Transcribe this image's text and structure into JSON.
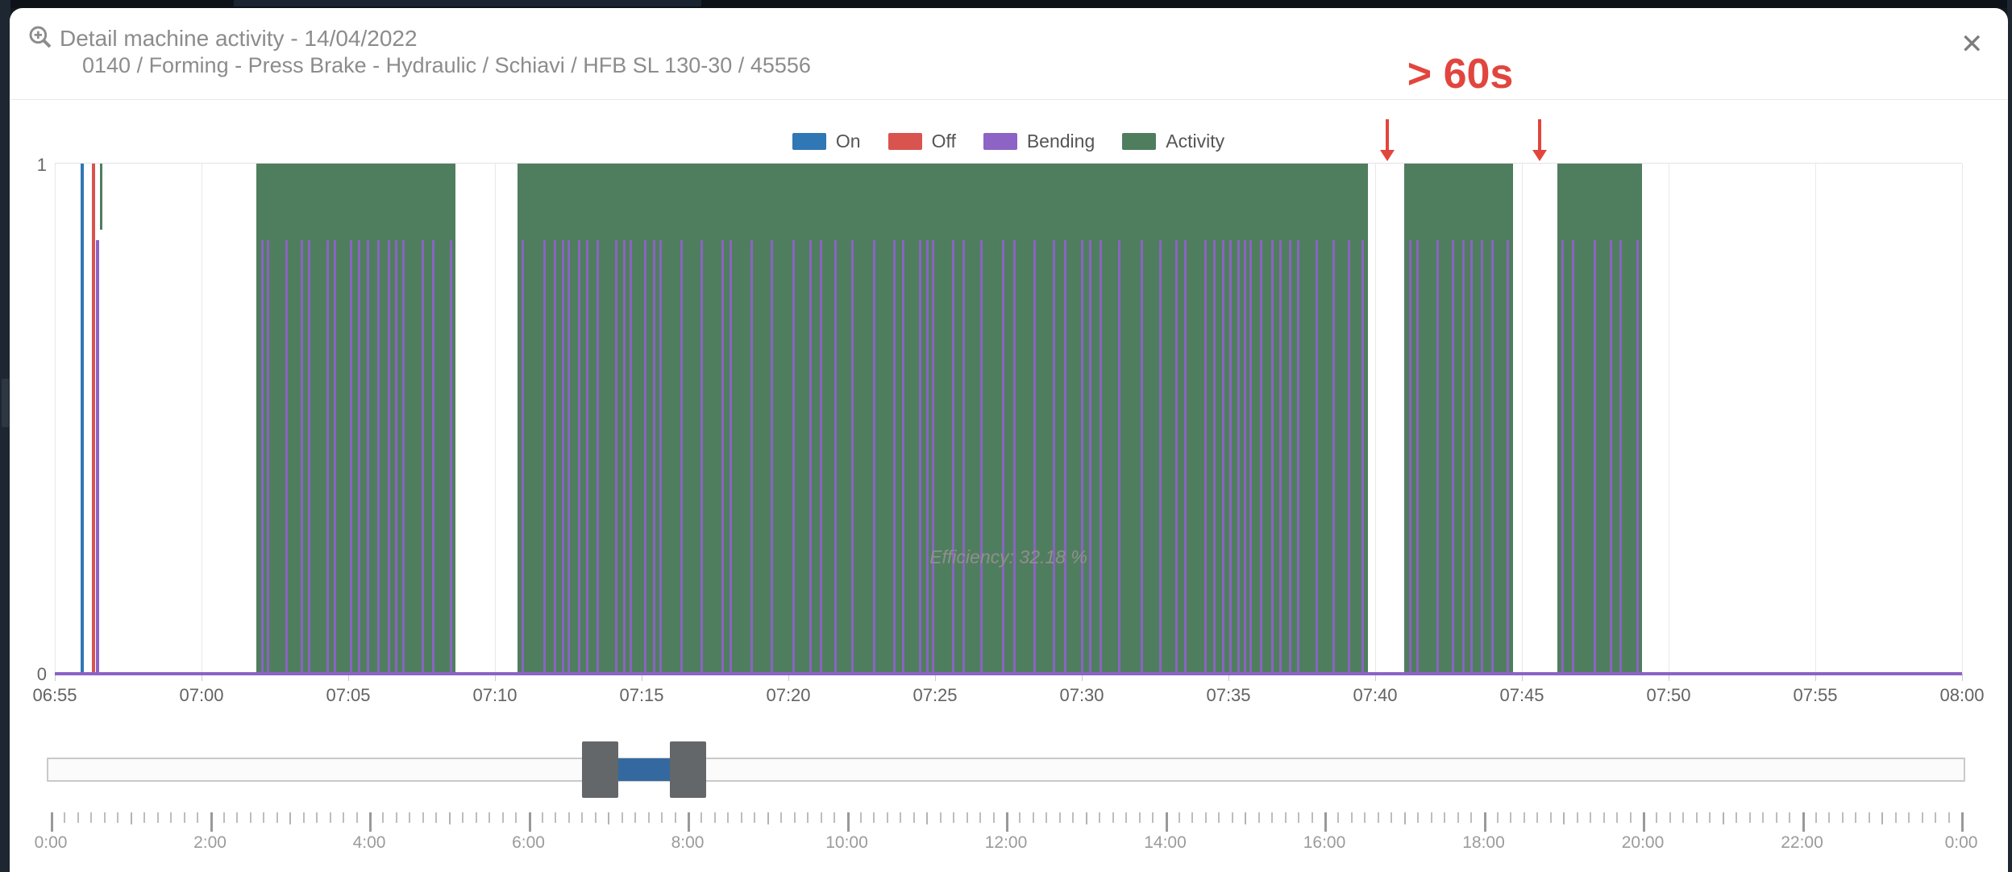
{
  "page": {
    "background_color": "#12181f"
  },
  "modal": {
    "title": "Detail machine activity - 14/04/2022",
    "subtitle": "0140 / Forming - Press Brake - Hydraulic / Schiavi / HFB SL 130-30 / 45556",
    "close_glyph": "✕"
  },
  "legend": {
    "items": [
      {
        "label": "On",
        "color": "#3077b5"
      },
      {
        "label": "Off",
        "color": "#d9534f"
      },
      {
        "label": "Bending",
        "color": "#8d63c6"
      },
      {
        "label": "Activity",
        "color": "#4f7e5e"
      }
    ]
  },
  "annotation": {
    "text": "> 60s",
    "color": "#e2453e",
    "label_minute": 47.9,
    "arrow_minutes": [
      45.4,
      50.6
    ]
  },
  "chart_data": {
    "type": "bar",
    "subtype": "machine-activity-timeline",
    "title": "",
    "xlabel": "",
    "ylabel": "",
    "ylim": [
      0,
      1
    ],
    "y_tick_top": "1",
    "y_tick_bottom": "0",
    "x_start": "06:55",
    "x_end": "08:00",
    "duration_min": 65,
    "x_tick_interval_min": 5,
    "x_tick_labels": [
      "06:55",
      "07:00",
      "07:05",
      "07:10",
      "07:15",
      "07:20",
      "07:25",
      "07:30",
      "07:35",
      "07:40",
      "07:45",
      "07:50",
      "07:55",
      "08:00"
    ],
    "series": [
      {
        "name": "On",
        "color": "#3077b5",
        "kind": "event-line",
        "minutes": [
          0.88
        ],
        "value": 1
      },
      {
        "name": "Off",
        "color": "#d9534f",
        "kind": "event-line",
        "minutes": [
          1.26
        ],
        "value": 1
      },
      {
        "name": "Bending",
        "color": "#8d63c6",
        "kind": "dense-strokes",
        "value": 0.85,
        "extra_minutes": [
          1.4
        ],
        "stroke_seed": 7,
        "stroke_width_px": 3,
        "baseline": true
      },
      {
        "name": "Activity",
        "color": "#4f7e5e",
        "kind": "interval",
        "value": 1,
        "intervals_min": [
          [
            6.87,
            13.65
          ],
          [
            15.77,
            44.75
          ],
          [
            46.0,
            49.7
          ],
          [
            51.2,
            54.1
          ]
        ],
        "spike_minutes": [
          1.55
        ],
        "spike_depth": 0.13
      }
    ],
    "gaps_over_60s_min": [
      [
        44.75,
        46.0
      ],
      [
        49.7,
        51.2
      ]
    ],
    "efficiency_label": "Efficiency: 32.18 %",
    "legend_position": "top",
    "grid": true
  },
  "navigator": {
    "selection_start_pct": 29.79,
    "selection_end_pct": 32.48,
    "range_color": "#34699f",
    "handle_color": "#63676a"
  },
  "ruler": {
    "major_labels": [
      "0:00",
      "2:00",
      "4:00",
      "6:00",
      "8:00",
      "10:00",
      "12:00",
      "14:00",
      "16:00",
      "18:00",
      "20:00",
      "22:00",
      "0:00"
    ],
    "minors_per_major": 12,
    "hour_tick_every": 6
  }
}
